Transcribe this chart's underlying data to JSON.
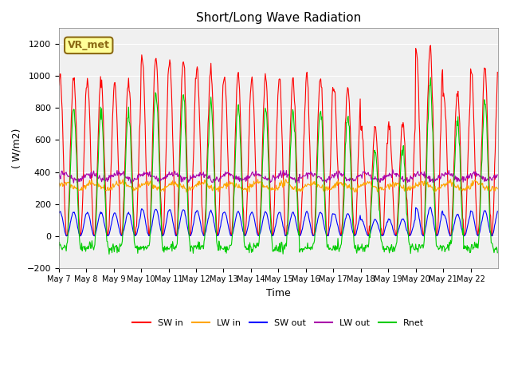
{
  "title": "Short/Long Wave Radiation",
  "xlabel": "Time",
  "ylabel": "( W/m2)",
  "ylim": [
    -200,
    1300
  ],
  "yticks": [
    -200,
    0,
    200,
    400,
    600,
    800,
    1000,
    1200
  ],
  "x_labels": [
    "May 7",
    "May 8",
    "May 9",
    "May 10",
    "May 11",
    "May 12",
    "May 13",
    "May 14",
    "May 15",
    "May 16",
    "May 17",
    "May 18",
    "May 19",
    "May 20",
    "May 21",
    "May 22"
  ],
  "site_label": "VR_met",
  "colors": {
    "SW_in": "#ff0000",
    "LW_in": "#ffa500",
    "SW_out": "#0000ff",
    "LW_out": "#aa00aa",
    "Rnet": "#00cc00"
  },
  "legend": [
    "SW in",
    "LW in",
    "SW out",
    "LW out",
    "Rnet"
  ],
  "background_color": "#ffffff"
}
